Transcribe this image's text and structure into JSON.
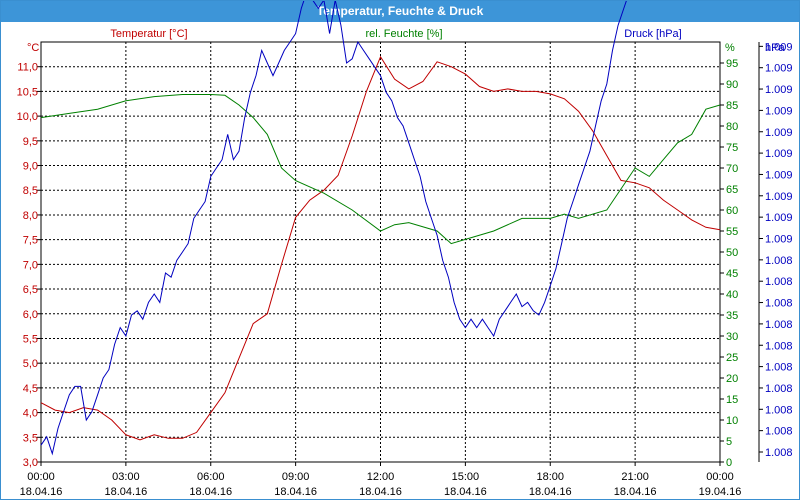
{
  "window": {
    "title": "Temperatur, Feuchte & Druck"
  },
  "chart_data": {
    "type": "line",
    "title": "Temperatur, Feuchte & Druck",
    "grid": true,
    "x_axis": {
      "ticks": [
        {
          "time": "00:00",
          "date": "18.04.16"
        },
        {
          "time": "03:00",
          "date": "18.04.16"
        },
        {
          "time": "06:00",
          "date": "18.04.16"
        },
        {
          "time": "09:00",
          "date": "18.04.16"
        },
        {
          "time": "12:00",
          "date": "18.04.16"
        },
        {
          "time": "15:00",
          "date": "18.04.16"
        },
        {
          "time": "18:00",
          "date": "18.04.16"
        },
        {
          "time": "21:00",
          "date": "18.04.16"
        },
        {
          "time": "00:00",
          "date": "19.04.16"
        }
      ],
      "range_hours": [
        0,
        24
      ]
    },
    "axes": {
      "temperature": {
        "label": "Temperatur [°C]",
        "unit": "°C",
        "color": "#c00000",
        "range": [
          3.0,
          11.5
        ],
        "ticks": [
          "3,0",
          "3,5",
          "4,0",
          "4,5",
          "5,0",
          "5,5",
          "6,0",
          "6,5",
          "7,0",
          "7,5",
          "8,0",
          "8,5",
          "9,0",
          "9,5",
          "10,0",
          "10,5",
          "11,0"
        ]
      },
      "humidity": {
        "label": "rel. Feuchte [%]",
        "unit": "%",
        "color": "#008000",
        "range": [
          0,
          100
        ],
        "ticks": [
          "0",
          "5",
          "10",
          "15",
          "20",
          "25",
          "30",
          "35",
          "40",
          "45",
          "50",
          "55",
          "60",
          "65",
          "70",
          "75",
          "80",
          "85",
          "90",
          "95"
        ]
      },
      "pressure": {
        "label": "Druck [hPa]",
        "unit": "hPa",
        "color": "#0000c0",
        "range": [
          1008.0,
          1009.0
        ],
        "ticks": [
          "1.008",
          "1.008",
          "1.008",
          "1.008",
          "1.008",
          "1.008",
          "1.008",
          "1.008",
          "1.008",
          "1.008",
          "1.009",
          "1.009",
          "1.009",
          "1.009",
          "1.009",
          "1.009",
          "1.009",
          "1.009",
          "1.009",
          "1.009"
        ]
      }
    },
    "series": [
      {
        "name": "Temperatur [°C]",
        "axis": "temperature",
        "color": "#c00000",
        "points": [
          [
            0,
            4.2
          ],
          [
            0.5,
            4.05
          ],
          [
            1,
            4.0
          ],
          [
            1.5,
            4.1
          ],
          [
            2,
            4.05
          ],
          [
            2.5,
            3.85
          ],
          [
            3,
            3.55
          ],
          [
            3.5,
            3.45
          ],
          [
            4,
            3.55
          ],
          [
            4.5,
            3.48
          ],
          [
            5,
            3.48
          ],
          [
            5.5,
            3.6
          ],
          [
            6,
            4.0
          ],
          [
            6.5,
            4.4
          ],
          [
            7,
            5.1
          ],
          [
            7.5,
            5.8
          ],
          [
            8,
            6.0
          ],
          [
            8.5,
            7.0
          ],
          [
            9,
            7.95
          ],
          [
            9.5,
            8.3
          ],
          [
            10,
            8.5
          ],
          [
            10.5,
            8.8
          ],
          [
            11,
            9.6
          ],
          [
            11.5,
            10.5
          ],
          [
            12,
            11.2
          ],
          [
            12.5,
            10.75
          ],
          [
            13,
            10.55
          ],
          [
            13.5,
            10.7
          ],
          [
            14,
            11.1
          ],
          [
            14.5,
            11.0
          ],
          [
            15,
            10.85
          ],
          [
            15.5,
            10.6
          ],
          [
            16,
            10.5
          ],
          [
            16.5,
            10.55
          ],
          [
            17,
            10.5
          ],
          [
            17.5,
            10.5
          ],
          [
            18,
            10.45
          ],
          [
            18.5,
            10.35
          ],
          [
            19,
            10.1
          ],
          [
            19.5,
            9.7
          ],
          [
            20,
            9.2
          ],
          [
            20.5,
            8.7
          ],
          [
            21,
            8.65
          ],
          [
            21.5,
            8.55
          ],
          [
            22,
            8.3
          ],
          [
            22.5,
            8.1
          ],
          [
            23,
            7.9
          ],
          [
            23.5,
            7.75
          ],
          [
            24,
            7.7
          ]
        ]
      },
      {
        "name": "rel. Feuchte [%]",
        "axis": "humidity",
        "color": "#008000",
        "points": [
          [
            0,
            82
          ],
          [
            1,
            83
          ],
          [
            2,
            84
          ],
          [
            3,
            86
          ],
          [
            4,
            87
          ],
          [
            5,
            87.5
          ],
          [
            6,
            87.5
          ],
          [
            6.5,
            87.3
          ],
          [
            7,
            85
          ],
          [
            7.5,
            82
          ],
          [
            8,
            78
          ],
          [
            8.5,
            70
          ],
          [
            9,
            67
          ],
          [
            10,
            64
          ],
          [
            11,
            60
          ],
          [
            12,
            55
          ],
          [
            12.5,
            56.5
          ],
          [
            13,
            57
          ],
          [
            14,
            55
          ],
          [
            14.5,
            52
          ],
          [
            15,
            53
          ],
          [
            16,
            55
          ],
          [
            17,
            58
          ],
          [
            18,
            58
          ],
          [
            18.5,
            59
          ],
          [
            19,
            58
          ],
          [
            20,
            60
          ],
          [
            21,
            70
          ],
          [
            21.5,
            68
          ],
          [
            22,
            72
          ],
          [
            22.5,
            76
          ],
          [
            23,
            78
          ],
          [
            23.5,
            84
          ],
          [
            24,
            85
          ]
        ]
      },
      {
        "name": "Druck [hPa]",
        "axis": "pressure",
        "color": "#0000c0",
        "points": [
          [
            0,
            1008.04
          ],
          [
            0.2,
            1008.06
          ],
          [
            0.4,
            1008.02
          ],
          [
            0.6,
            1008.08
          ],
          [
            0.8,
            1008.12
          ],
          [
            1,
            1008.16
          ],
          [
            1.2,
            1008.18
          ],
          [
            1.4,
            1008.18
          ],
          [
            1.6,
            1008.1
          ],
          [
            1.8,
            1008.12
          ],
          [
            2,
            1008.16
          ],
          [
            2.2,
            1008.2
          ],
          [
            2.4,
            1008.22
          ],
          [
            2.6,
            1008.28
          ],
          [
            2.8,
            1008.32
          ],
          [
            3,
            1008.3
          ],
          [
            3.2,
            1008.35
          ],
          [
            3.4,
            1008.36
          ],
          [
            3.6,
            1008.34
          ],
          [
            3.8,
            1008.38
          ],
          [
            4,
            1008.4
          ],
          [
            4.2,
            1008.38
          ],
          [
            4.4,
            1008.45
          ],
          [
            4.6,
            1008.44
          ],
          [
            4.8,
            1008.48
          ],
          [
            5,
            1008.5
          ],
          [
            5.2,
            1008.52
          ],
          [
            5.4,
            1008.58
          ],
          [
            5.6,
            1008.6
          ],
          [
            5.8,
            1008.62
          ],
          [
            6,
            1008.68
          ],
          [
            6.2,
            1008.7
          ],
          [
            6.4,
            1008.72
          ],
          [
            6.6,
            1008.78
          ],
          [
            6.8,
            1008.72
          ],
          [
            7,
            1008.74
          ],
          [
            7.2,
            1008.82
          ],
          [
            7.4,
            1008.88
          ],
          [
            7.6,
            1008.92
          ],
          [
            7.8,
            1008.98
          ],
          [
            8,
            1008.95
          ],
          [
            8.2,
            1008.92
          ],
          [
            8.4,
            1008.95
          ],
          [
            8.6,
            1008.98
          ],
          [
            8.8,
            1009.0
          ],
          [
            9,
            1009.02
          ],
          [
            9.2,
            1009.08
          ],
          [
            9.4,
            1009.12
          ],
          [
            9.6,
            1009.1
          ],
          [
            9.8,
            1009.08
          ],
          [
            10,
            1009.1
          ],
          [
            10.2,
            1009.02
          ],
          [
            10.4,
            1009.1
          ],
          [
            10.6,
            1009.04
          ],
          [
            10.8,
            1008.95
          ],
          [
            11,
            1008.96
          ],
          [
            11.2,
            1009.0
          ],
          [
            11.4,
            1008.98
          ],
          [
            11.6,
            1008.96
          ],
          [
            11.8,
            1008.94
          ],
          [
            12,
            1008.92
          ],
          [
            12.2,
            1008.88
          ],
          [
            12.4,
            1008.86
          ],
          [
            12.6,
            1008.82
          ],
          [
            12.8,
            1008.8
          ],
          [
            13,
            1008.76
          ],
          [
            13.2,
            1008.72
          ],
          [
            13.4,
            1008.68
          ],
          [
            13.6,
            1008.62
          ],
          [
            13.8,
            1008.58
          ],
          [
            14,
            1008.54
          ],
          [
            14.2,
            1008.48
          ],
          [
            14.4,
            1008.44
          ],
          [
            14.6,
            1008.38
          ],
          [
            14.8,
            1008.34
          ],
          [
            15,
            1008.32
          ],
          [
            15.2,
            1008.34
          ],
          [
            15.4,
            1008.32
          ],
          [
            15.6,
            1008.34
          ],
          [
            15.8,
            1008.32
          ],
          [
            16,
            1008.3
          ],
          [
            16.2,
            1008.34
          ],
          [
            16.4,
            1008.36
          ],
          [
            16.6,
            1008.38
          ],
          [
            16.8,
            1008.4
          ],
          [
            17,
            1008.37
          ],
          [
            17.2,
            1008.38
          ],
          [
            17.4,
            1008.36
          ],
          [
            17.6,
            1008.35
          ],
          [
            17.8,
            1008.38
          ],
          [
            18,
            1008.42
          ],
          [
            18.2,
            1008.46
          ],
          [
            18.4,
            1008.52
          ],
          [
            18.6,
            1008.58
          ],
          [
            18.8,
            1008.62
          ],
          [
            19,
            1008.66
          ],
          [
            19.2,
            1008.7
          ],
          [
            19.4,
            1008.74
          ],
          [
            19.6,
            1008.8
          ],
          [
            19.8,
            1008.86
          ],
          [
            20,
            1008.9
          ],
          [
            20.2,
            1008.98
          ],
          [
            20.4,
            1009.04
          ],
          [
            20.6,
            1009.08
          ],
          [
            20.8,
            1009.12
          ],
          [
            21,
            1009.14
          ],
          [
            21.2,
            1009.18
          ],
          [
            21.4,
            1009.22
          ],
          [
            21.6,
            1009.25
          ],
          [
            21.8,
            1009.28
          ],
          [
            22,
            1009.26
          ],
          [
            22.2,
            1009.24
          ],
          [
            22.4,
            1009.26
          ],
          [
            22.6,
            1009.22
          ],
          [
            22.8,
            1009.2
          ],
          [
            23,
            1009.24
          ],
          [
            23.2,
            1009.22
          ],
          [
            23.4,
            1009.28
          ],
          [
            23.6,
            1009.32
          ],
          [
            23.8,
            1009.28
          ],
          [
            24,
            1009.3
          ]
        ]
      }
    ]
  }
}
